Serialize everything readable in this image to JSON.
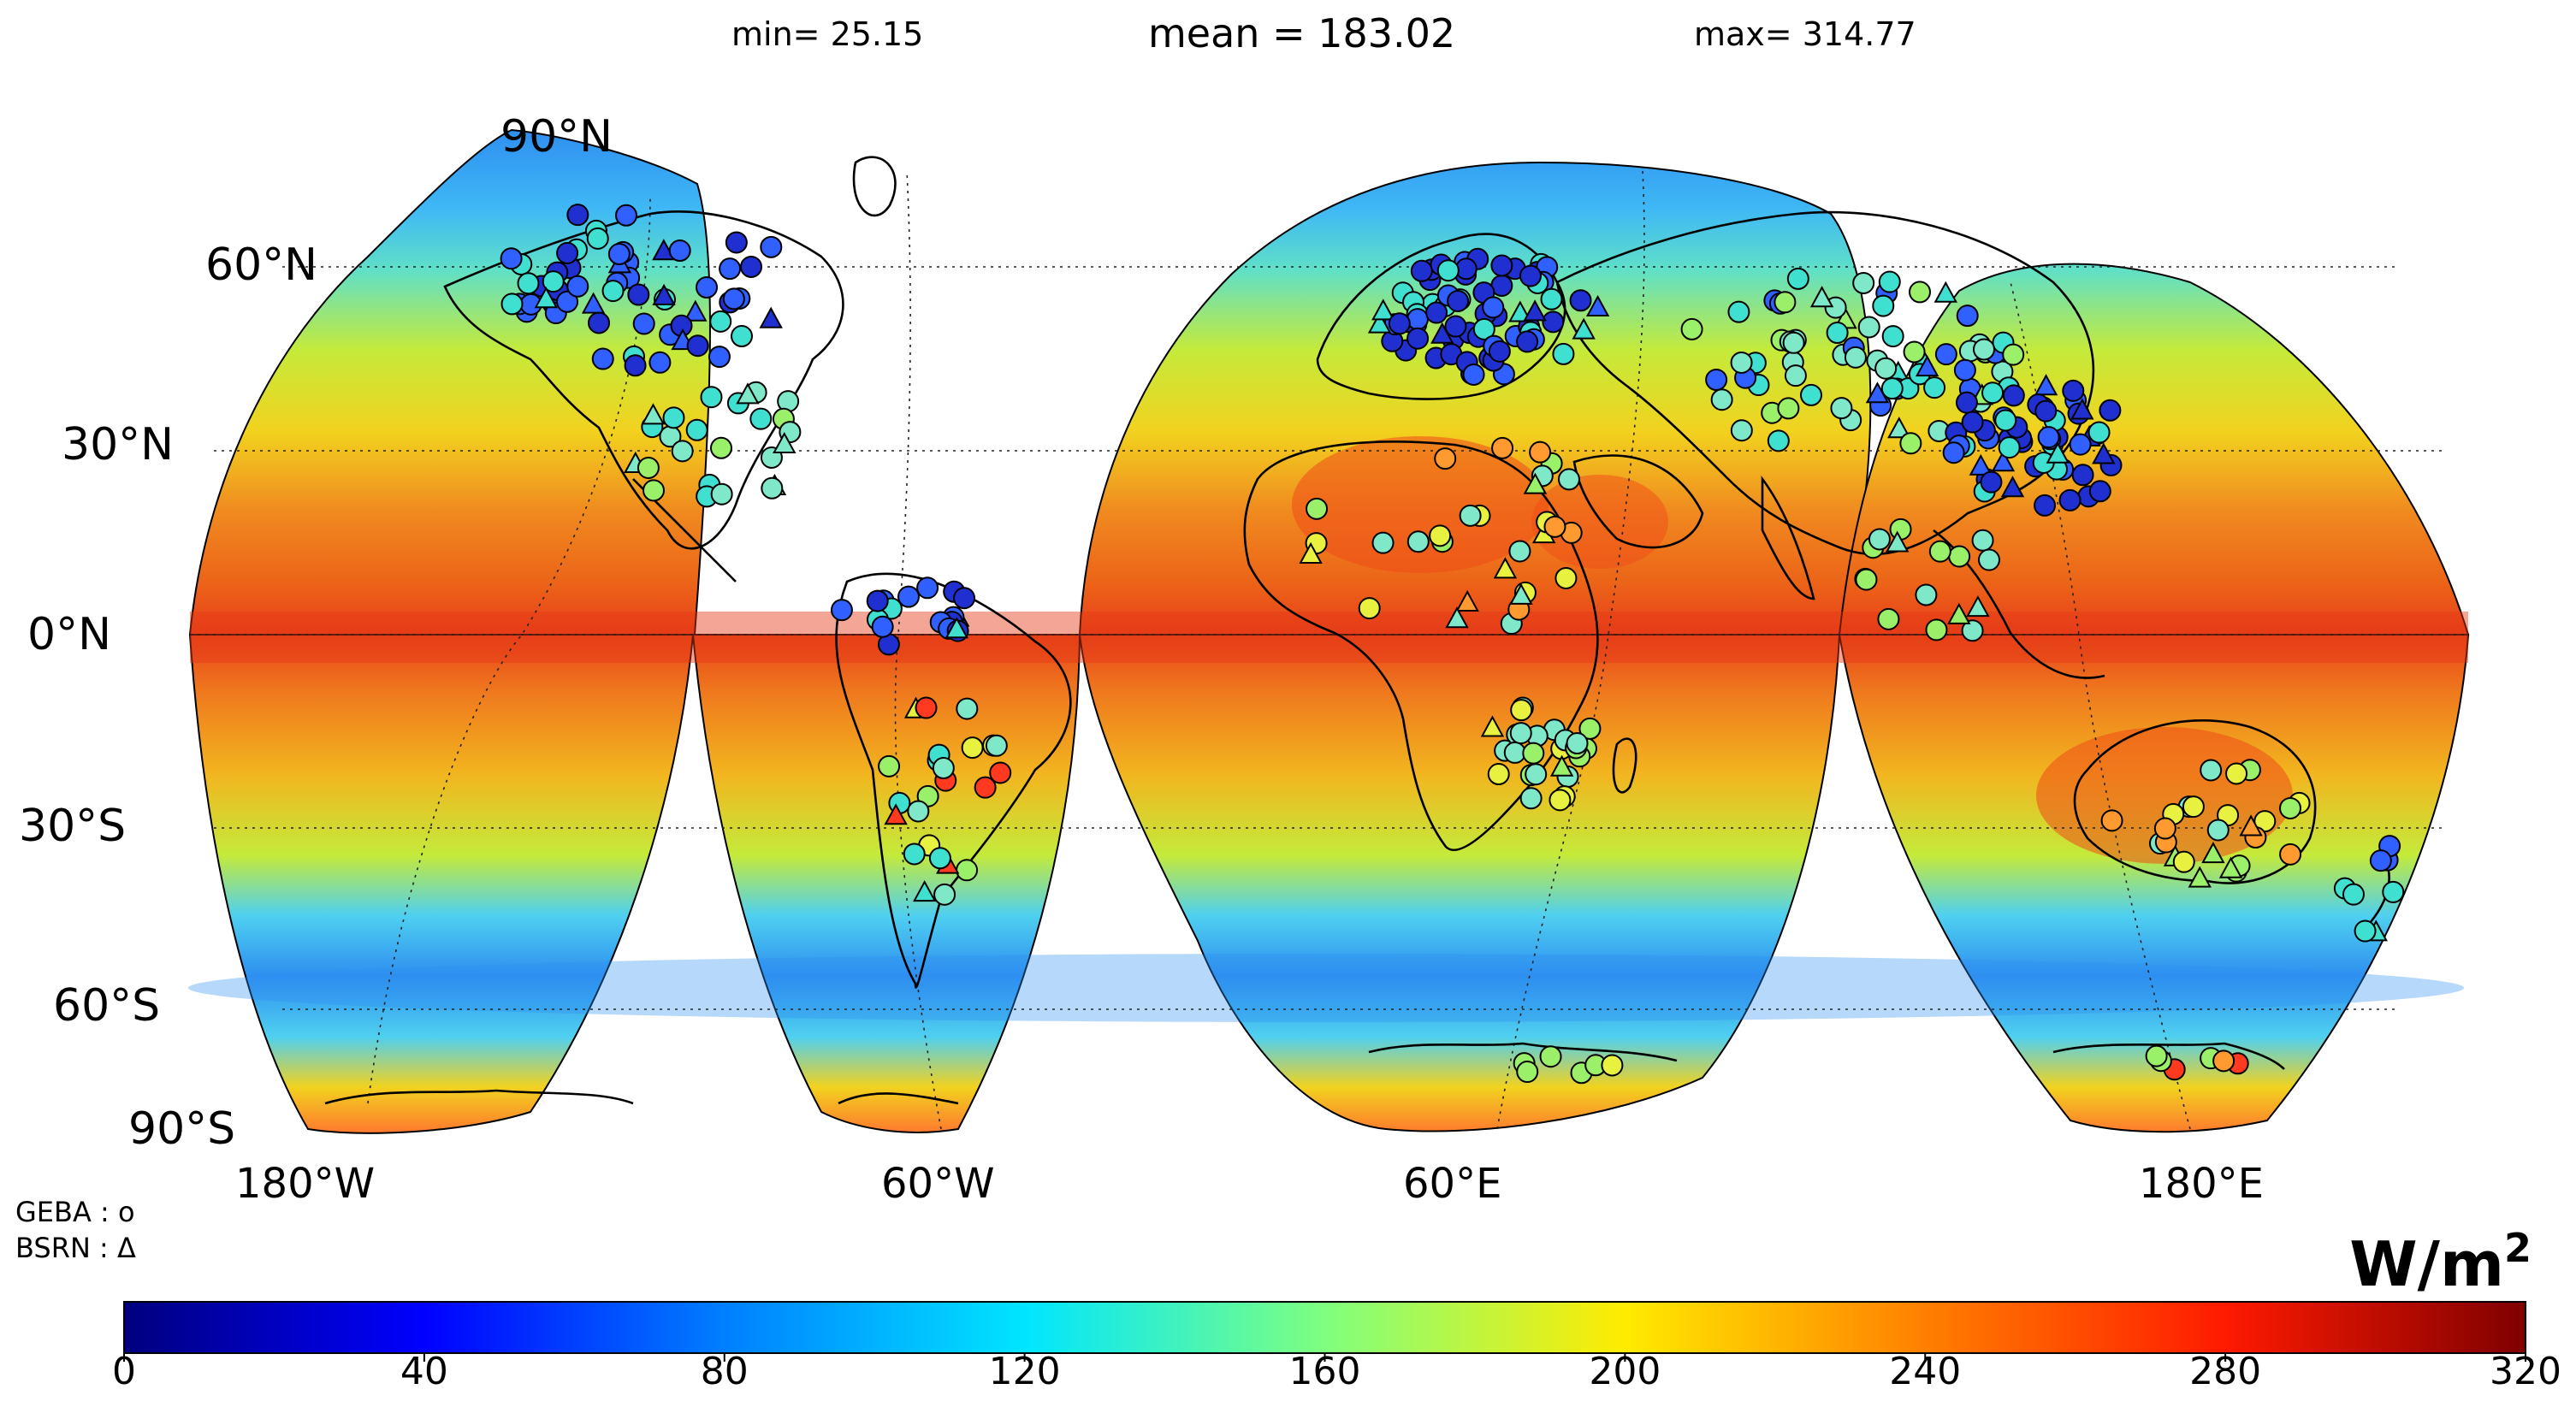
{
  "stats": {
    "min": "min= 25.15",
    "mean": "mean = 183.02",
    "max": "max= 314.77"
  },
  "lat_labels": [
    "90°N",
    "60°N",
    "30°N",
    "0°N",
    "30°S",
    "60°S",
    "90°S"
  ],
  "lon_labels": [
    "180°W",
    "60°W",
    "60°E",
    "180°E"
  ],
  "legend": {
    "geba": "GEBA : o",
    "bsrn": "BSRN : Δ"
  },
  "units": {
    "base": "W/m",
    "exp": "2"
  },
  "colorbar": {
    "ticks": [
      "0",
      "40",
      "80",
      "120",
      "160",
      "200",
      "240",
      "280",
      "320"
    ],
    "range": [
      0,
      320
    ],
    "colors": [
      "#00007f",
      "#0000ff",
      "#007fff",
      "#00e5ff",
      "#7fff7f",
      "#ffeb00",
      "#ff7f00",
      "#ff1a00",
      "#7f0000"
    ]
  },
  "map": {
    "projection": "interrupted Goode homolosine",
    "field_colors": {
      "equator": "#e8501a",
      "subtropics": "#f2a51f",
      "midlat": "#c5ea3a",
      "high_lat": "#4fd0f0",
      "polar_band": "#2e8ff0",
      "antarctic": "#ff7030"
    },
    "station_markers": {
      "geba": "circle",
      "bsrn": "triangle",
      "outline": "#000000"
    }
  }
}
